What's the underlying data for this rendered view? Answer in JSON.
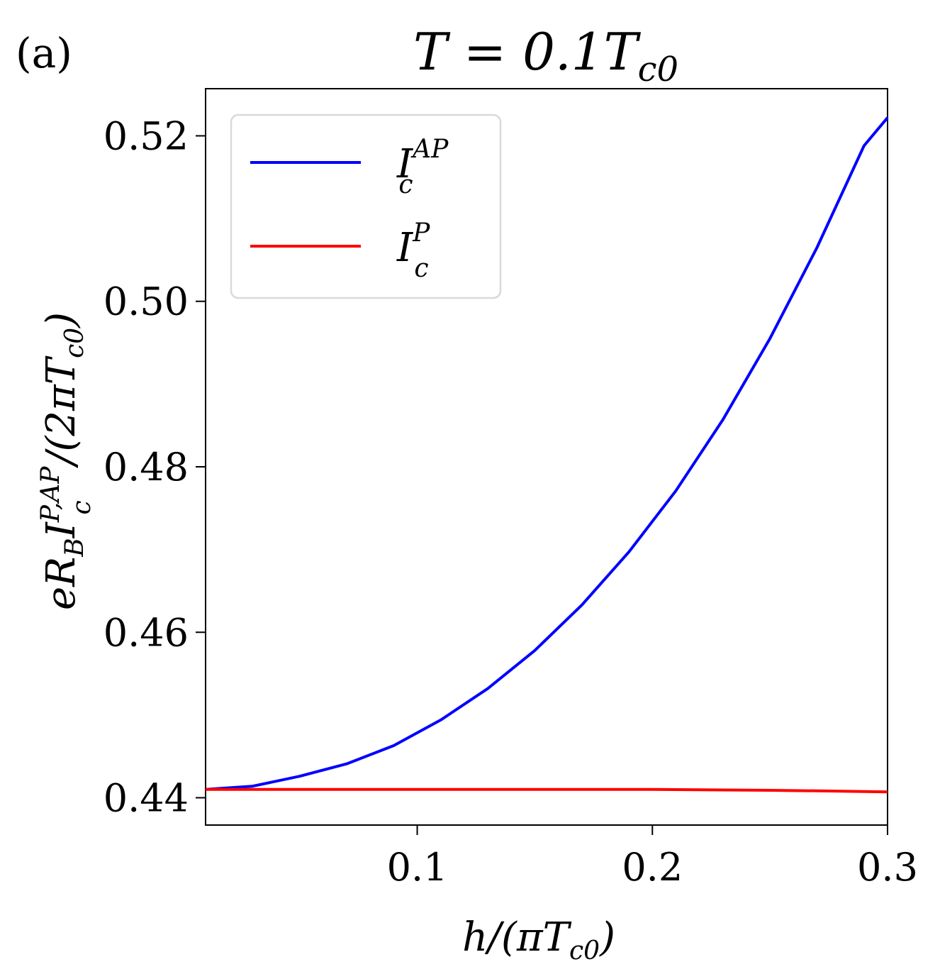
{
  "panel_label": "(a)",
  "chart_data": {
    "type": "line",
    "title": "T = 0.1T",
    "title_sub": "c0",
    "xlabel": "h/(πT",
    "xlabel_sub": "c0",
    "xlabel_close": ")",
    "ylabel": "eR",
    "ylabel_sub1": "B",
    "ylabel_mid": "I",
    "ylabel_sup2": "P,AP",
    "ylabel_sub2": "c",
    "ylabel_tail": "/(2πT",
    "ylabel_sub3": "c0",
    "ylabel_close": ")",
    "xlim": [
      0.01,
      0.3
    ],
    "ylim": [
      0.4367,
      0.5257
    ],
    "xticks": [
      0.1,
      0.2,
      0.3
    ],
    "xtick_labels": [
      "0.1",
      "0.2",
      "0.3"
    ],
    "yticks": [
      0.44,
      0.46,
      0.48,
      0.5,
      0.52
    ],
    "ytick_labels": [
      "0.44",
      "0.46",
      "0.48",
      "0.50",
      "0.52"
    ],
    "grid": false,
    "legend_position": "top-left",
    "series": [
      {
        "name": "I",
        "name_sub": "c",
        "name_sup": "AP",
        "color": "#0000ff",
        "x": [
          0.01,
          0.03,
          0.05,
          0.07,
          0.09,
          0.11,
          0.13,
          0.15,
          0.17,
          0.19,
          0.21,
          0.23,
          0.25,
          0.27,
          0.29,
          0.3
        ],
        "y": [
          0.441,
          0.4414,
          0.4426,
          0.4441,
          0.4463,
          0.4494,
          0.4532,
          0.4578,
          0.4633,
          0.4697,
          0.4771,
          0.4857,
          0.4955,
          0.5065,
          0.5188,
          0.5222
        ]
      },
      {
        "name": "I",
        "name_sub": "c",
        "name_sup": "P",
        "color": "#ff0000",
        "x": [
          0.01,
          0.05,
          0.1,
          0.15,
          0.2,
          0.25,
          0.28,
          0.3
        ],
        "y": [
          0.441,
          0.441,
          0.441,
          0.441,
          0.441,
          0.4409,
          0.4408,
          0.4407
        ]
      }
    ]
  }
}
